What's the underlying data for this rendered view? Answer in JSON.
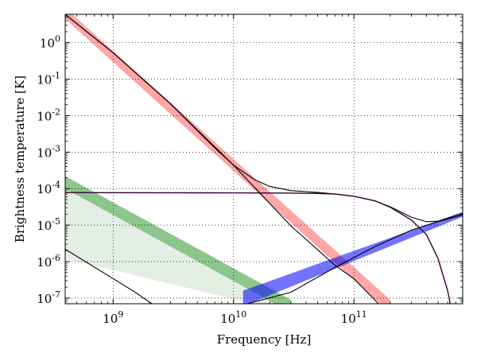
{
  "chart_data": {
    "type": "line",
    "xlabel": "Frequency [Hz]",
    "ylabel": "Brightness temperature [K]",
    "x_scale": "log",
    "y_scale": "log",
    "xlim": [
      400000000.0,
      800000000000.0
    ],
    "ylim": [
      7e-08,
      6
    ],
    "grid": true,
    "grid_style": "dotted",
    "x_ticks": [
      {
        "value": 1000000000.0,
        "base": "10",
        "exp": "9"
      },
      {
        "value": 10000000000.0,
        "base": "10",
        "exp": "10"
      },
      {
        "value": 100000000000.0,
        "base": "10",
        "exp": "11"
      }
    ],
    "y_ticks": [
      {
        "value": 1,
        "base": "10",
        "exp": "0"
      },
      {
        "value": 0.1,
        "base": "10",
        "exp": "-1"
      },
      {
        "value": 0.01,
        "base": "10",
        "exp": "-2"
      },
      {
        "value": 0.001,
        "base": "10",
        "exp": "-3"
      },
      {
        "value": 0.0001,
        "base": "10",
        "exp": "-4"
      },
      {
        "value": 1e-05,
        "base": "10",
        "exp": "-5"
      },
      {
        "value": 1e-06,
        "base": "10",
        "exp": "-6"
      },
      {
        "value": 1e-07,
        "base": "10",
        "exp": "-7"
      }
    ],
    "bands": [
      {
        "color": "#ff0000",
        "opacity": 0.35,
        "x": [
          400000000.0,
          200000000000.0
        ],
        "low": [
          [
            400000000.0,
            4.5
          ],
          [
            200000000000.0,
            4e-08
          ]
        ],
        "high": [
          [
            400000000.0,
            9.0
          ],
          [
            200000000000.0,
            9e-08
          ]
        ]
      },
      {
        "color": "#008000",
        "opacity": 0.45,
        "x": [
          400000000.0,
          30000000000.0
        ],
        "low": [
          [
            400000000.0,
            0.0001
          ],
          [
            30000000000.0,
            4e-08
          ]
        ],
        "high": [
          [
            400000000.0,
            0.00022
          ],
          [
            30000000000.0,
            9e-08
          ]
        ]
      },
      {
        "color": "#6aa36a",
        "opacity": 0.18,
        "x": [
          400000000.0,
          30000000000.0
        ],
        "low": [
          [
            400000000.0,
            1.2e-06
          ],
          [
            30000000000.0,
            4e-08
          ]
        ],
        "high": [
          [
            400000000.0,
            0.0001
          ],
          [
            30000000000.0,
            4e-08
          ]
        ]
      },
      {
        "color": "#0000ff",
        "opacity": 0.55,
        "x": [
          12000000000.0,
          800000000000.0
        ],
        "low": [
          [
            12000000000.0,
            6e-08
          ],
          [
            800000000000.0,
            1.7e-05
          ]
        ],
        "high": [
          [
            12000000000.0,
            1.6e-07
          ],
          [
            800000000000.0,
            2.3e-05
          ]
        ]
      }
    ],
    "series": [
      {
        "color": "#000000",
        "width": 1.1,
        "points": [
          [
            400000000.0,
            6.0
          ],
          [
            1000000000.0,
            0.53
          ],
          [
            3000000000.0,
            0.021
          ],
          [
            7000000000.0,
            0.0013
          ],
          [
            10000000000.0,
            0.00044
          ],
          [
            15000000000.0,
            0.000175
          ],
          [
            20000000000.0,
            0.000115
          ],
          [
            30000000000.0,
            8.8e-05
          ],
          [
            50000000000.0,
            7.9e-05
          ],
          [
            70000000000.0,
            7.1e-05
          ],
          [
            100000000000.0,
            6.2e-05
          ],
          [
            150000000000.0,
            4.6e-05
          ],
          [
            200000000000.0,
            3.2e-05
          ],
          [
            300000000000.0,
            1.65e-05
          ],
          [
            400000000000.0,
            1.24e-05
          ],
          [
            500000000000.0,
            1.28e-05
          ],
          [
            600000000000.0,
            1.55e-05
          ],
          [
            800000000000.0,
            2.1e-05
          ]
        ]
      },
      {
        "color": "#330033",
        "width": 1.4,
        "points": [
          [
            400000000.0,
            7.8e-05
          ],
          [
            10000000000.0,
            7.65e-05
          ],
          [
            30000000000.0,
            7.55e-05
          ],
          [
            50000000000.0,
            7.4e-05
          ],
          [
            70000000000.0,
            7.1e-05
          ],
          [
            100000000000.0,
            6.2e-05
          ],
          [
            150000000000.0,
            4.6e-05
          ],
          [
            200000000000.0,
            3.1e-05
          ],
          [
            300000000000.0,
            1.38e-05
          ],
          [
            400000000000.0,
            5.5e-06
          ],
          [
            500000000000.0,
            1.2e-06
          ],
          [
            600000000000.0,
            1.6e-07
          ],
          [
            630000000000.0,
            7e-08
          ]
        ]
      },
      {
        "color": "#000000",
        "width": 1.1,
        "points": [
          [
            400000000.0,
            2.2e-06
          ],
          [
            1500000000.0,
            1.5e-07
          ],
          [
            2100000000.0,
            7e-08
          ]
        ]
      },
      {
        "color": "#000000",
        "width": 1.1,
        "points": [
          [
            400000000.0,
            6.0
          ],
          [
            1000000000.0,
            0.53
          ],
          [
            3000000000.0,
            0.021
          ],
          [
            10000000000.0,
            0.00044
          ],
          [
            30000000000.0,
            9.5e-06
          ],
          [
            70000000000.0,
            7.8e-07
          ],
          [
            100000000000.0,
            3.4e-07
          ],
          [
            160000000000.0,
            7e-08
          ]
        ]
      },
      {
        "color": "#000000",
        "width": 1.1,
        "points": [
          [
            13000000000.0,
            7e-08
          ],
          [
            30000000000.0,
            1.45e-07
          ],
          [
            70000000000.0,
            7e-07
          ],
          [
            150000000000.0,
            2.6e-06
          ],
          [
            300000000000.0,
            7.3e-06
          ],
          [
            500000000000.0,
            1.25e-05
          ],
          [
            800000000000.0,
            1.9e-05
          ]
        ]
      }
    ]
  }
}
